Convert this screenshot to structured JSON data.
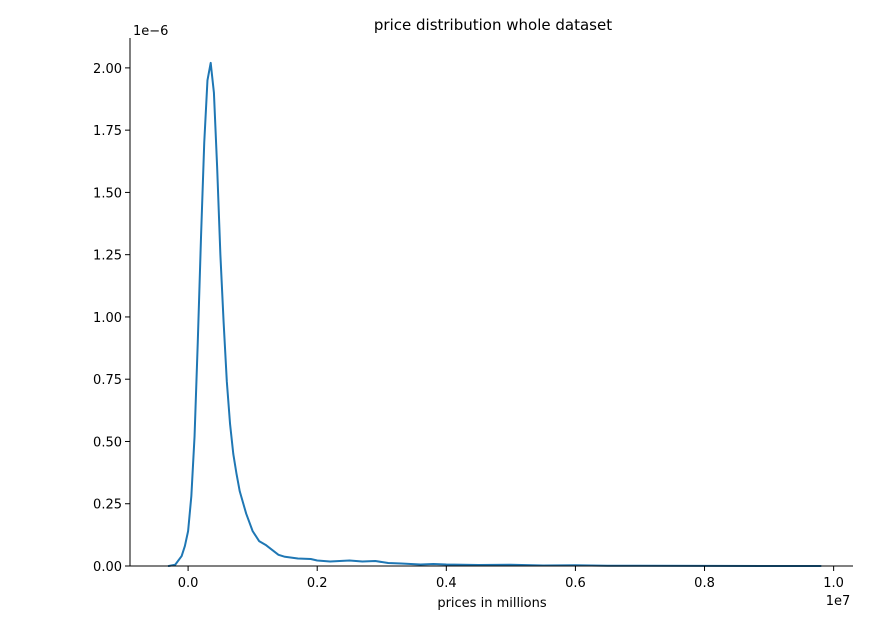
{
  "chart_data": {
    "type": "line",
    "title": "price distribution whole dataset",
    "xlabel": "prices in millions",
    "ylabel": "",
    "x_offset_label": "1e7",
    "y_offset_label": "1e−6",
    "xlim": [
      -0.09,
      1.03
    ],
    "ylim": [
      0,
      2.12
    ],
    "x_ticks": [
      0.0,
      0.2,
      0.4,
      0.6,
      0.8,
      1.0
    ],
    "x_tick_labels": [
      "0.0",
      "0.2",
      "0.4",
      "0.6",
      "0.8",
      "1.0"
    ],
    "y_ticks": [
      0.0,
      0.25,
      0.5,
      0.75,
      1.0,
      1.25,
      1.5,
      1.75,
      2.0
    ],
    "y_tick_labels": [
      "0.00",
      "0.25",
      "0.50",
      "0.75",
      "1.00",
      "1.25",
      "1.50",
      "1.75",
      "2.00"
    ],
    "grid": false,
    "line_color": "#1f77b4",
    "series": [
      {
        "x": [
          -0.03,
          -0.02,
          -0.01,
          -0.005,
          0.0,
          0.005,
          0.01,
          0.015,
          0.02,
          0.025,
          0.03,
          0.035,
          0.04,
          0.045,
          0.05,
          0.055,
          0.06,
          0.065,
          0.07,
          0.075,
          0.08,
          0.09,
          0.1,
          0.11,
          0.12,
          0.13,
          0.14,
          0.15,
          0.17,
          0.19,
          0.2,
          0.22,
          0.25,
          0.27,
          0.29,
          0.31,
          0.33,
          0.36,
          0.38,
          0.4,
          0.45,
          0.5,
          0.55,
          0.6,
          0.65,
          0.7,
          0.8,
          0.9,
          0.98
        ],
        "y": [
          0.0,
          0.005,
          0.04,
          0.08,
          0.14,
          0.28,
          0.52,
          0.9,
          1.32,
          1.7,
          1.95,
          2.02,
          1.9,
          1.6,
          1.25,
          0.98,
          0.74,
          0.57,
          0.45,
          0.37,
          0.3,
          0.21,
          0.14,
          0.1,
          0.085,
          0.065,
          0.045,
          0.037,
          0.03,
          0.028,
          0.022,
          0.018,
          0.022,
          0.018,
          0.02,
          0.012,
          0.01,
          0.006,
          0.008,
          0.006,
          0.004,
          0.005,
          0.002,
          0.003,
          0.001,
          0.001,
          0.0005,
          0.0002,
          0.0
        ]
      }
    ]
  }
}
